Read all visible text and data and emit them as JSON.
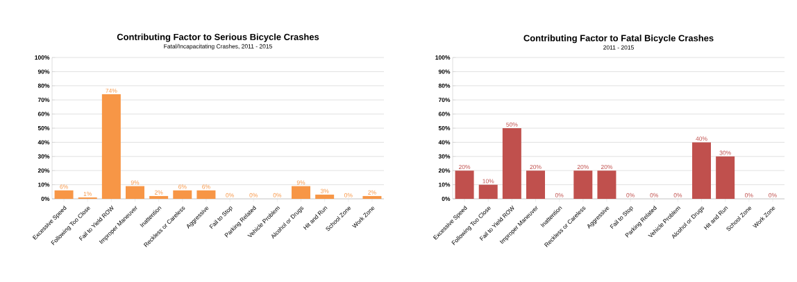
{
  "chart_data": [
    {
      "type": "bar",
      "title": "Contributing Factor to Serious Bicycle Crashes",
      "subtitle": "Fatal/Incapacitating Crashes, 2011 - 2015",
      "categories": [
        "Excessive Speed",
        "Following Too Close",
        "Fail to Yield ROW",
        "Improper Maneuver",
        "Inattention",
        "Reckless or Careless",
        "Aggressive",
        "Fail to Stop",
        "Parking Related",
        "Vehicle Problem",
        "Alcohol or Drugs",
        "Hit and Run",
        "School Zone",
        "Work Zone"
      ],
      "values": [
        6,
        1,
        74,
        9,
        2,
        6,
        6,
        0,
        0,
        0,
        9,
        3,
        0,
        2
      ],
      "value_labels": [
        "6%",
        "1%",
        "74%",
        "9%",
        "2%",
        "6%",
        "6%",
        "0%",
        "0%",
        "0%",
        "9%",
        "3%",
        "0%",
        "2%"
      ],
      "color": "#f79646",
      "ylim": [
        0,
        100
      ],
      "yticks": [
        {
          "value": 0,
          "label": "0%"
        },
        {
          "value": 10,
          "label": "10%"
        },
        {
          "value": 20,
          "label": "20%"
        },
        {
          "value": 30,
          "label": "30%"
        },
        {
          "value": 40,
          "label": "40%"
        },
        {
          "value": 50,
          "label": "50%"
        },
        {
          "value": 60,
          "label": "60%"
        },
        {
          "value": 70,
          "label": "70%"
        },
        {
          "value": 80,
          "label": "80%"
        },
        {
          "value": 90,
          "label": "90%"
        },
        {
          "value": 100,
          "label": "100%"
        }
      ],
      "grid": "y"
    },
    {
      "type": "bar",
      "title": "Contributing Factor to Fatal Bicycle Crashes",
      "subtitle": "2011 - 2015",
      "categories": [
        "Excessive Speed",
        "Following Too Close",
        "Fail to Yield ROW",
        "Improper Maneuver",
        "Inattention",
        "Reckless or Careless",
        "Aggressive",
        "Fail to Stop",
        "Parking Related",
        "Vehicle Problem",
        "Alcohol or Drugs",
        "Hit and Run",
        "School Zone",
        "Work Zone"
      ],
      "values": [
        20,
        10,
        50,
        20,
        0,
        20,
        20,
        0,
        0,
        0,
        40,
        30,
        0,
        0
      ],
      "value_labels": [
        "20%",
        "10%",
        "50%",
        "20%",
        "0%",
        "20%",
        "20%",
        "0%",
        "0%",
        "0%",
        "40%",
        "30%",
        "0%",
        "0%"
      ],
      "color": "#c0504d",
      "ylim": [
        0,
        100
      ],
      "yticks": [
        {
          "value": 0,
          "label": "0%"
        },
        {
          "value": 10,
          "label": "10%"
        },
        {
          "value": 20,
          "label": "20%"
        },
        {
          "value": 30,
          "label": "30%"
        },
        {
          "value": 40,
          "label": "40%"
        },
        {
          "value": 50,
          "label": "50%"
        },
        {
          "value": 60,
          "label": "60%"
        },
        {
          "value": 70,
          "label": "70%"
        },
        {
          "value": 80,
          "label": "80%"
        },
        {
          "value": 90,
          "label": "90%"
        },
        {
          "value": 100,
          "label": "100%"
        }
      ],
      "grid": "y"
    }
  ]
}
